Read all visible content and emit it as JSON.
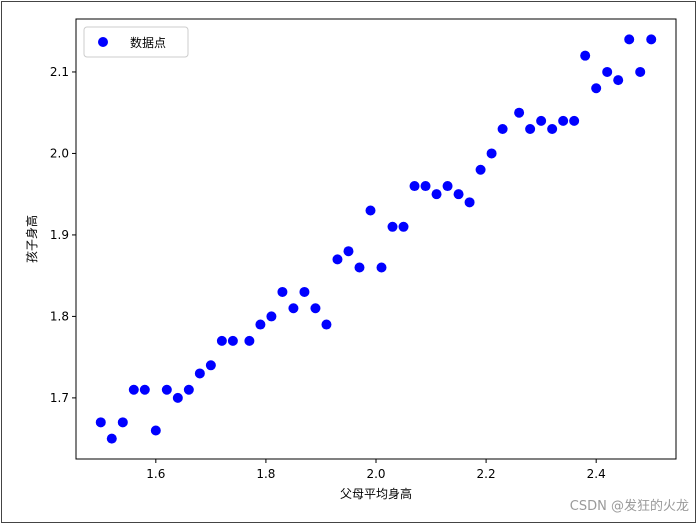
{
  "chart_data": {
    "type": "scatter",
    "title": "",
    "xlabel": "父母平均身高",
    "ylabel": "孩子身高",
    "xlim": [
      1.455,
      2.545
    ],
    "ylim": [
      1.625,
      2.165
    ],
    "xticks": [
      "1.6",
      "1.8",
      "2.0",
      "2.2",
      "2.4"
    ],
    "yticks": [
      "1.7",
      "1.8",
      "1.9",
      "2.0",
      "2.1"
    ],
    "grid": false,
    "legend": {
      "placement": "top-left",
      "entries": [
        "数据点"
      ]
    },
    "series": [
      {
        "name": "数据点",
        "color": "#0000ff",
        "marker": "circle",
        "points": [
          [
            1.5,
            1.67
          ],
          [
            1.52,
            1.65
          ],
          [
            1.54,
            1.67
          ],
          [
            1.56,
            1.71
          ],
          [
            1.58,
            1.71
          ],
          [
            1.6,
            1.66
          ],
          [
            1.62,
            1.71
          ],
          [
            1.64,
            1.7
          ],
          [
            1.66,
            1.71
          ],
          [
            1.68,
            1.73
          ],
          [
            1.7,
            1.74
          ],
          [
            1.72,
            1.77
          ],
          [
            1.74,
            1.77
          ],
          [
            1.77,
            1.77
          ],
          [
            1.79,
            1.79
          ],
          [
            1.81,
            1.8
          ],
          [
            1.83,
            1.83
          ],
          [
            1.85,
            1.81
          ],
          [
            1.87,
            1.83
          ],
          [
            1.89,
            1.81
          ],
          [
            1.91,
            1.79
          ],
          [
            1.93,
            1.87
          ],
          [
            1.95,
            1.88
          ],
          [
            1.97,
            1.86
          ],
          [
            1.99,
            1.93
          ],
          [
            2.01,
            1.86
          ],
          [
            2.03,
            1.91
          ],
          [
            2.05,
            1.91
          ],
          [
            2.07,
            1.96
          ],
          [
            2.09,
            1.96
          ],
          [
            2.11,
            1.95
          ],
          [
            2.13,
            1.96
          ],
          [
            2.15,
            1.95
          ],
          [
            2.17,
            1.94
          ],
          [
            2.19,
            1.98
          ],
          [
            2.21,
            2.0
          ],
          [
            2.23,
            2.03
          ],
          [
            2.26,
            2.05
          ],
          [
            2.28,
            2.03
          ],
          [
            2.3,
            2.04
          ],
          [
            2.32,
            2.03
          ],
          [
            2.34,
            2.04
          ],
          [
            2.36,
            2.04
          ],
          [
            2.38,
            2.12
          ],
          [
            2.4,
            2.08
          ],
          [
            2.42,
            2.1
          ],
          [
            2.44,
            2.09
          ],
          [
            2.46,
            2.14
          ],
          [
            2.48,
            2.1
          ],
          [
            2.5,
            2.14
          ]
        ]
      }
    ]
  },
  "watermark": "CSDN @发狂的火龙"
}
